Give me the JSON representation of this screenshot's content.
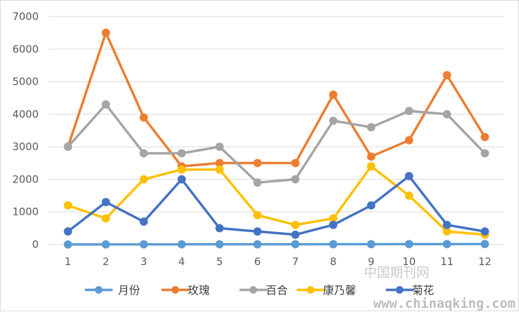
{
  "chart_data": {
    "type": "line",
    "title": "",
    "xlabel": "",
    "ylabel": "",
    "x": [
      1,
      2,
      3,
      4,
      5,
      6,
      7,
      8,
      9,
      10,
      11,
      12
    ],
    "x_tick_labels": [
      "1",
      "2",
      "3",
      "4",
      "5",
      "6",
      "7",
      "8",
      "9",
      "10",
      "11",
      "12"
    ],
    "ylim": [
      0,
      7000
    ],
    "y_ticks": [
      0,
      1000,
      2000,
      3000,
      4000,
      5000,
      6000,
      7000
    ],
    "y_tick_labels": [
      "0",
      "1000",
      "2000",
      "3000",
      "4000",
      "5000",
      "6000",
      "7000"
    ],
    "grid": true,
    "legend_position": "bottom",
    "series": [
      {
        "name": "月份",
        "color": "#5b9bd5",
        "values": [
          1,
          2,
          3,
          4,
          5,
          6,
          7,
          8,
          9,
          10,
          11,
          12
        ]
      },
      {
        "name": "玫瑰",
        "color": "#ed7d31",
        "values": [
          3000,
          6500,
          3900,
          2400,
          2500,
          2500,
          2500,
          4600,
          2700,
          3200,
          5200,
          3300
        ]
      },
      {
        "name": "百合",
        "color": "#a5a5a5",
        "values": [
          3000,
          4300,
          2800,
          2800,
          3000,
          1900,
          2000,
          3800,
          3600,
          4100,
          4000,
          2800
        ]
      },
      {
        "name": "康乃馨",
        "color": "#ffc000",
        "values": [
          1200,
          800,
          2000,
          2300,
          2300,
          900,
          600,
          800,
          2400,
          1500,
          400,
          300
        ]
      },
      {
        "name": "菊花",
        "color": "#4472c4",
        "values": [
          400,
          1300,
          700,
          2000,
          500,
          400,
          300,
          600,
          1200,
          2100,
          600,
          400
        ]
      }
    ]
  },
  "watermark": {
    "line1": "中国期刊网",
    "line2": "www.chinaqking.com"
  }
}
